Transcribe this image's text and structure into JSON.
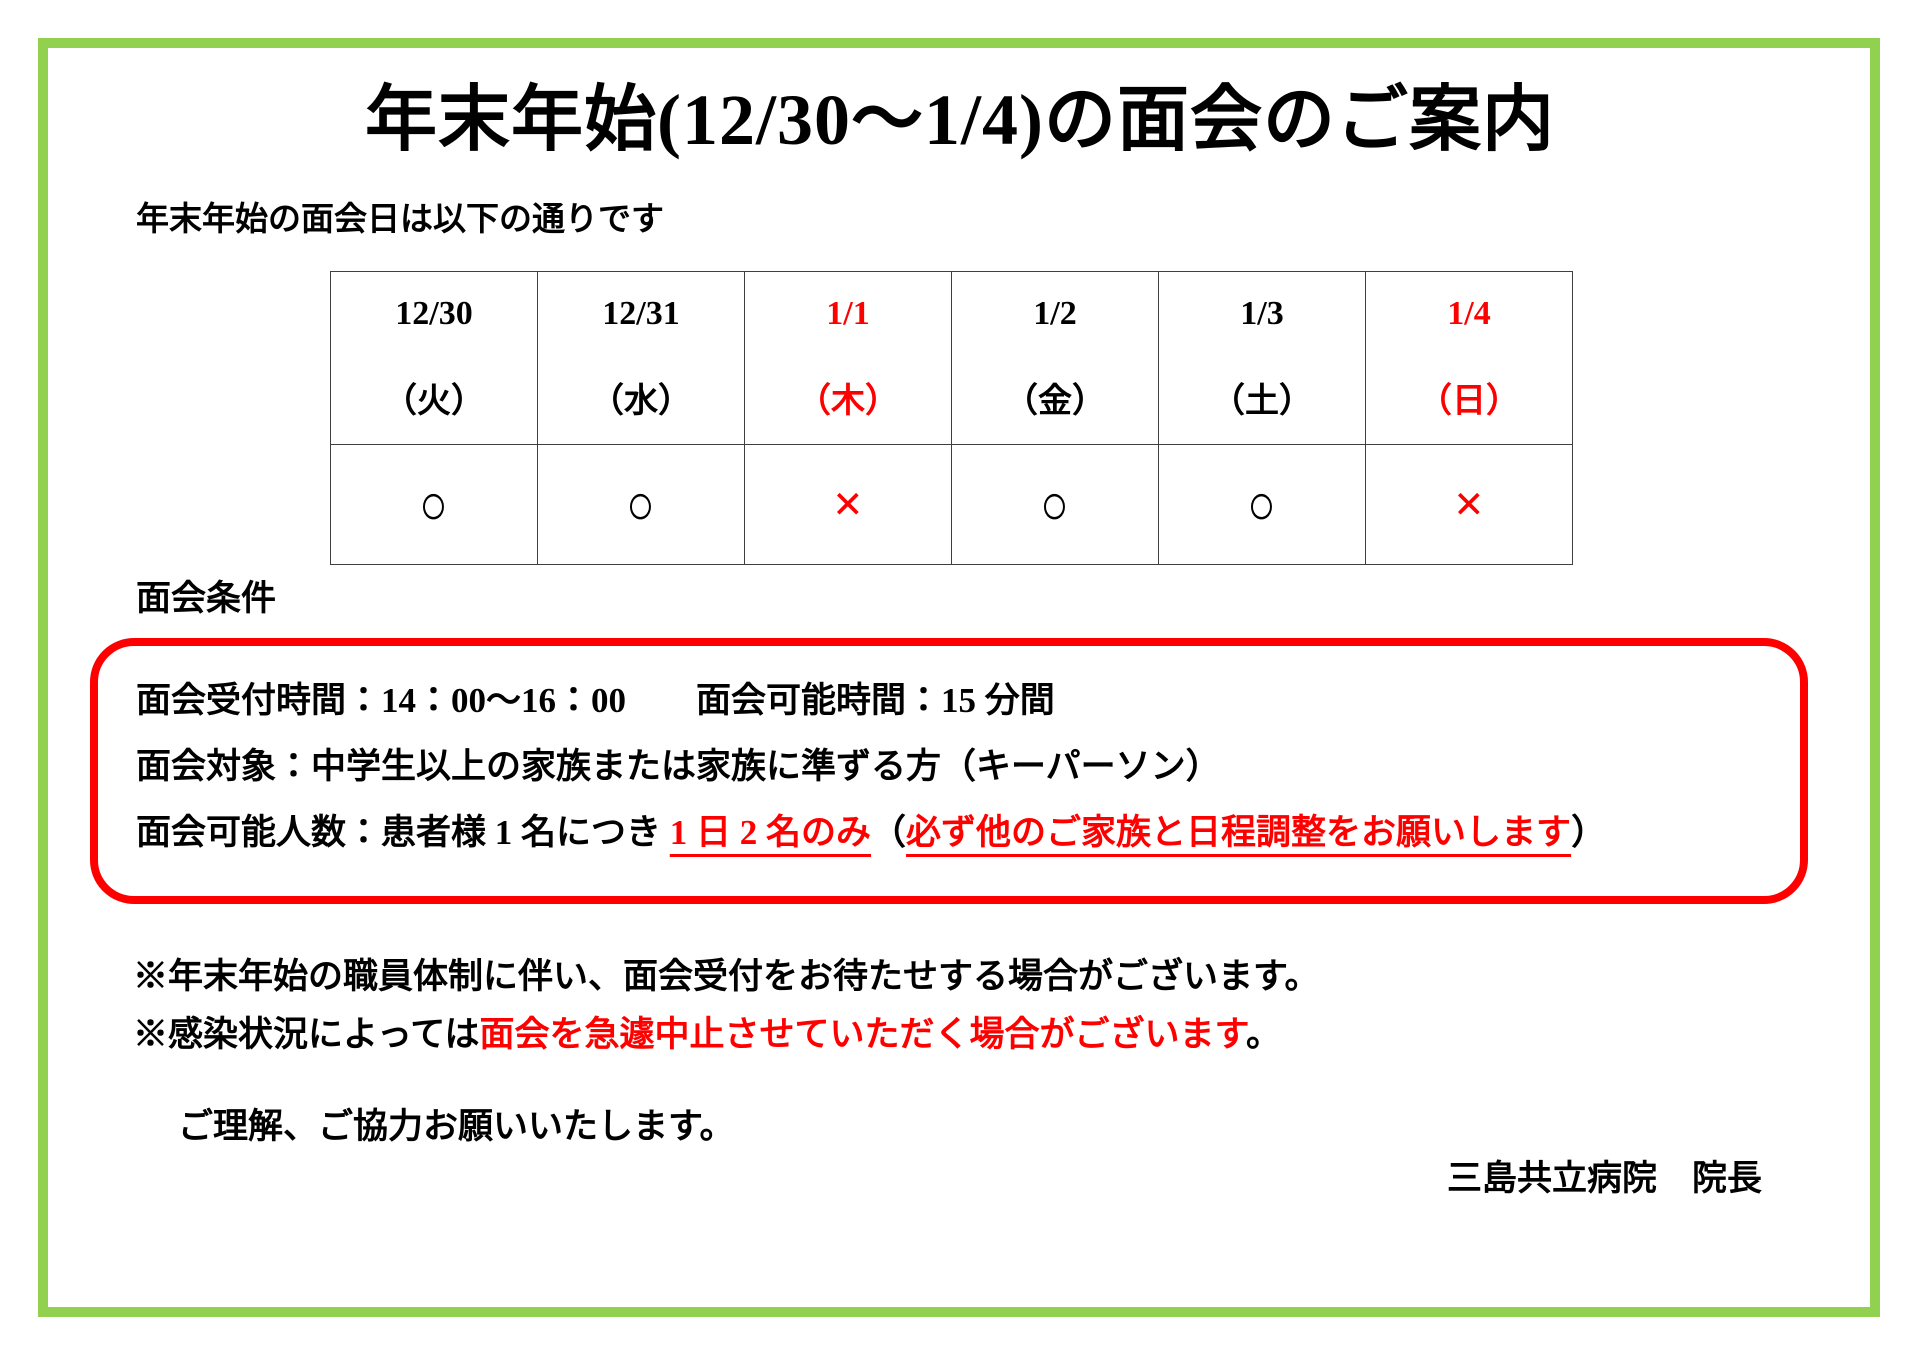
{
  "colors": {
    "green_border": "#92d050",
    "accent_red": "#ff0000",
    "text": "#000000",
    "table_line": "#3f3f3f"
  },
  "page": {
    "title": "年末年始(12/30～1/4)の面会のご案内",
    "intro": "年末年始の面会日は以下の通りです"
  },
  "schedule_table": {
    "columns": [
      {
        "date": "12/30",
        "day": "（火）",
        "status": "○",
        "holiday": false
      },
      {
        "date": "12/31",
        "day": "（水）",
        "status": "○",
        "holiday": false
      },
      {
        "date": "1/1",
        "day": "（木）",
        "status": "×",
        "holiday": true
      },
      {
        "date": "1/2",
        "day": "（金）",
        "status": "○",
        "holiday": false
      },
      {
        "date": "1/3",
        "day": "（土）",
        "status": "○",
        "holiday": false
      },
      {
        "date": "1/4",
        "day": "（日）",
        "status": "×",
        "holiday": true
      }
    ]
  },
  "conditions": {
    "heading": "面会条件",
    "line1": "面会受付時間：14：00～16：00　　面会可能時間：15 分間",
    "line2": "面会対象：中学生以上の家族または家族に準ずる方（キーパーソン）",
    "line3_prefix": "面会可能人数：患者様 1 名につき ",
    "line3_red1": "1 日 2 名のみ",
    "line3_paren_open": "（",
    "line3_red2": "必ず他のご家族と日程調整をお願いします",
    "line3_paren_close": "）"
  },
  "notes": {
    "note1": "※年末年始の職員体制に伴い、面会受付をお待たせする場合がございます。",
    "note2_black": "※感染状況によっては",
    "note2_red": "面会を急遽中止させていただく場合がございます",
    "note2_end": "。"
  },
  "closing": "ご理解、ご協力お願いいたします。",
  "signature": "三島共立病院　院長"
}
